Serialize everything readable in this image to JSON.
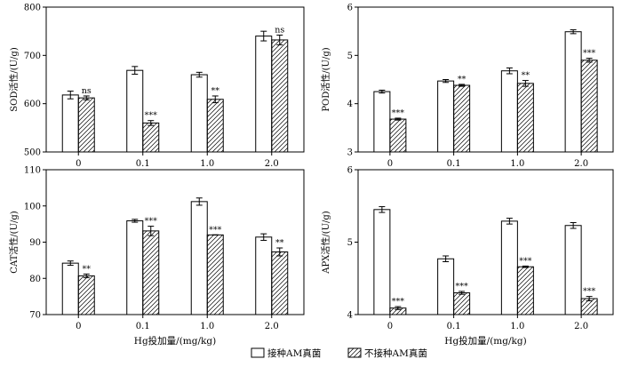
{
  "figure": {
    "legend": {
      "inoculated_label": "接种AM真菌",
      "non_inoculated_label": "不接种AM真菌"
    },
    "colors": {
      "inoculated": "#ffffff",
      "non_inoculated_hatch": "#000000",
      "stroke": "#000000"
    }
  },
  "chart_data": [
    {
      "id": "sod",
      "type": "bar",
      "ylabel": "SOD活性/(U/g)",
      "ylim": [
        500,
        800
      ],
      "yticks": [
        500,
        600,
        700,
        800
      ],
      "categories": [
        "0",
        "0.1",
        "1.0",
        "2.0"
      ],
      "xlabel": "",
      "series": [
        {
          "name": "接种AM真菌",
          "values": [
            618,
            669,
            660,
            740
          ],
          "errors": [
            8,
            8,
            5,
            10
          ]
        },
        {
          "name": "不接种AM真菌",
          "values": [
            612,
            560,
            609,
            732
          ],
          "errors": [
            4,
            5,
            7,
            10
          ]
        }
      ],
      "significance": [
        "ns",
        "***",
        "**",
        "ns"
      ]
    },
    {
      "id": "pod",
      "type": "bar",
      "ylabel": "POD活性/(U/g)",
      "ylim": [
        3,
        6
      ],
      "yticks": [
        3,
        4,
        5,
        6
      ],
      "categories": [
        "0",
        "0.1",
        "1.0",
        "2.0"
      ],
      "xlabel": "",
      "series": [
        {
          "name": "接种AM真菌",
          "values": [
            4.25,
            4.47,
            4.68,
            5.49
          ],
          "errors": [
            0.03,
            0.03,
            0.06,
            0.04
          ]
        },
        {
          "name": "不接种AM真菌",
          "values": [
            3.68,
            4.38,
            4.42,
            4.9
          ],
          "errors": [
            0.02,
            0.02,
            0.06,
            0.04
          ]
        }
      ],
      "significance": [
        "***",
        "**",
        "**",
        "***"
      ]
    },
    {
      "id": "cat",
      "type": "bar",
      "ylabel": "CAT活性/(U/g)",
      "ylim": [
        70,
        110
      ],
      "yticks": [
        70,
        80,
        90,
        100,
        110
      ],
      "categories": [
        "0",
        "0.1",
        "1.0",
        "2.0"
      ],
      "xlabel": "Hg投加量/(mg/kg)",
      "series": [
        {
          "name": "接种AM真菌",
          "values": [
            84.2,
            95.9,
            101.2,
            91.4
          ],
          "errors": [
            0.6,
            0.4,
            1.0,
            0.9
          ]
        },
        {
          "name": "不接种AM真菌",
          "values": [
            80.7,
            93.1,
            92.0,
            87.3
          ],
          "errors": [
            0.5,
            1.3,
            0,
            1.1
          ]
        }
      ],
      "significance": [
        "**",
        "***",
        "***",
        "**"
      ]
    },
    {
      "id": "apx",
      "type": "bar",
      "ylabel": "APX活性/(U/g)",
      "ylim": [
        4,
        6
      ],
      "yticks": [
        4,
        5,
        6
      ],
      "categories": [
        "0",
        "0.1",
        "1.0",
        "2.0"
      ],
      "xlabel": "Hg投加量/(mg/kg)",
      "series": [
        {
          "name": "接种AM真菌",
          "values": [
            5.45,
            4.77,
            5.29,
            5.23
          ],
          "errors": [
            0.04,
            0.04,
            0.04,
            0.04
          ]
        },
        {
          "name": "不接种AM真菌",
          "values": [
            4.09,
            4.3,
            4.66,
            4.22
          ],
          "errors": [
            0.02,
            0.02,
            0.01,
            0.03
          ]
        }
      ],
      "significance": [
        "***",
        "***",
        "***",
        "***"
      ]
    }
  ]
}
